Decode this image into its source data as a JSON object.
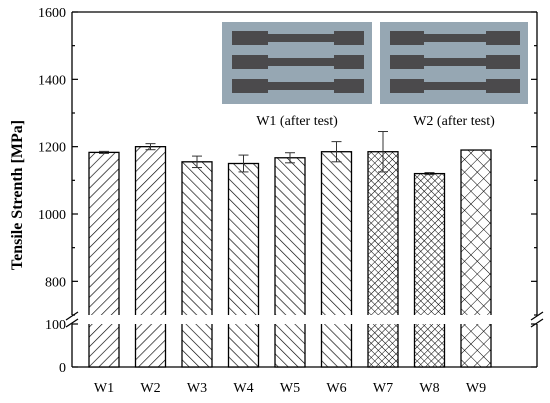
{
  "chart_data": {
    "type": "bar",
    "ylabel": "Tensile Strenth [MPa]",
    "xlabel": "",
    "categories": [
      "W1",
      "W2",
      "W3",
      "W4",
      "W5",
      "W6",
      "W7",
      "W8",
      "W9"
    ],
    "values": [
      1183,
      1200,
      1155,
      1150,
      1167,
      1185,
      1185,
      1120,
      1190
    ],
    "errors": [
      3,
      9,
      17,
      25,
      15,
      30,
      60,
      3,
      0
    ],
    "patterns": [
      "diag-right",
      "diag-right",
      "diag-left",
      "diag-left",
      "diag-left",
      "diag-left",
      "crosshatch-dense",
      "crosshatch-dense",
      "crosshatch-sparse"
    ],
    "axis_break": {
      "lower_range": [
        0,
        100
      ],
      "upper_range": [
        700,
        1600
      ]
    },
    "yticks_upper": [
      "800",
      "1000",
      "1200",
      "1400",
      "1600"
    ],
    "yticks_lower": [
      "0",
      "100"
    ],
    "grid": false,
    "legend": "none"
  },
  "insets": [
    {
      "caption": "W1 (after test)"
    },
    {
      "caption": "W2 (after test)"
    }
  ]
}
